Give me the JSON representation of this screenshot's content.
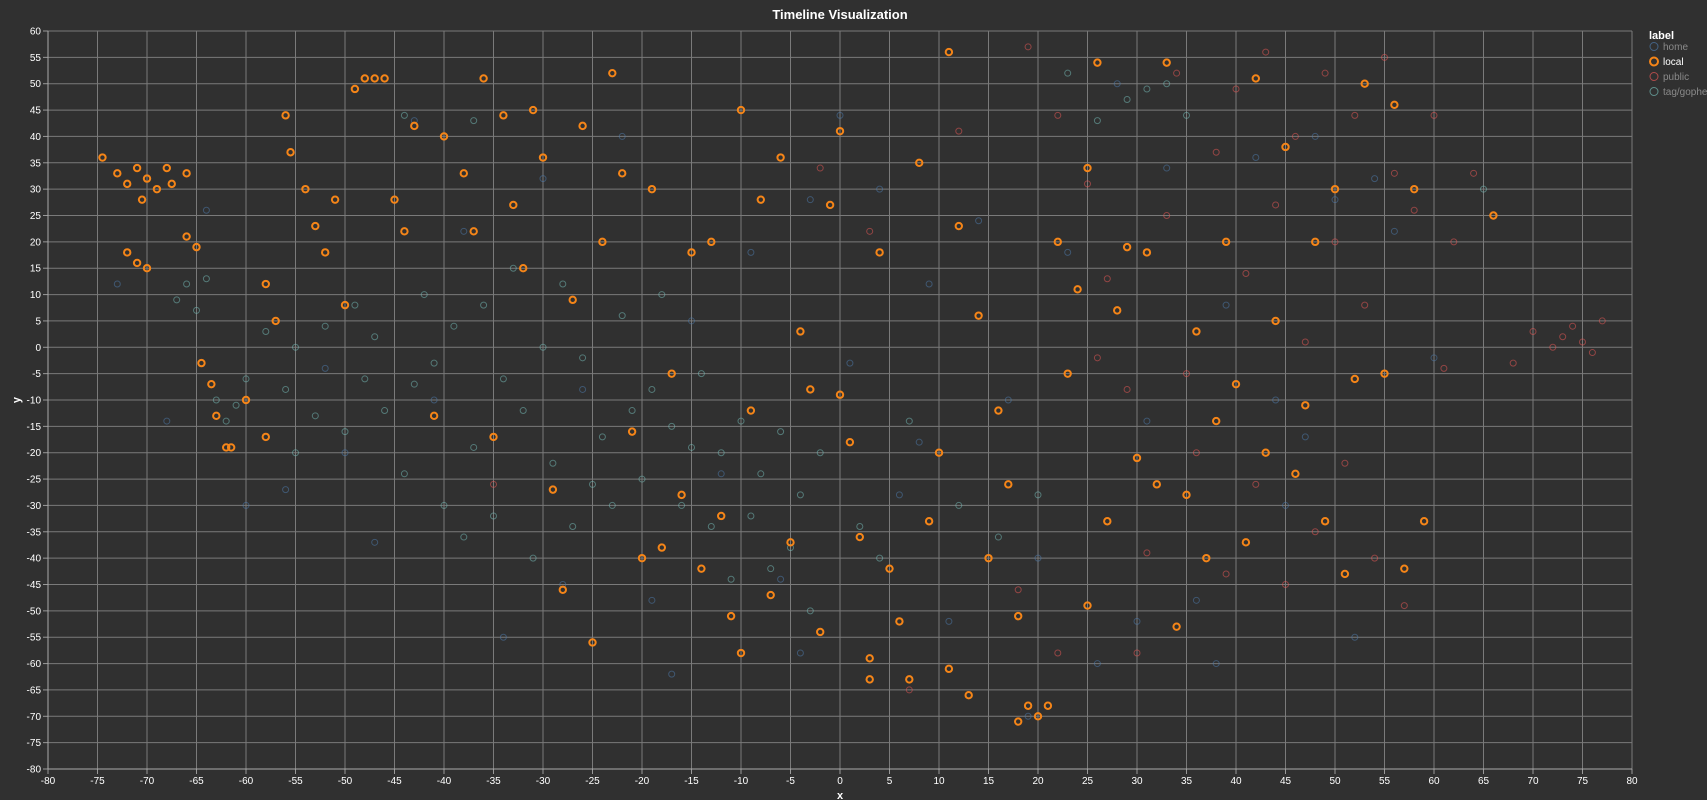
{
  "chart_data": {
    "type": "scatter",
    "title": "Timeline Visualization",
    "xlabel": "x",
    "ylabel": "y",
    "xlim": [
      -80,
      80
    ],
    "ylim": [
      -80,
      60
    ],
    "x_tick_step": 5,
    "y_tick_step": 5,
    "grid": true,
    "point_shape": "open-circle",
    "legend": {
      "title": "label",
      "placement": "top-right",
      "entries": [
        "home",
        "local",
        "public",
        "tag/gopher"
      ]
    },
    "colors": {
      "home": "#4c78a8",
      "local": "#f58518",
      "public": "#e45756",
      "tag/gopher": "#72b7b2"
    },
    "series": [
      {
        "name": "home",
        "points": [
          [
            -73,
            12
          ],
          [
            -68,
            -14
          ],
          [
            -60,
            -30
          ],
          [
            -52,
            -4
          ],
          [
            -47,
            -37
          ],
          [
            -43,
            43
          ],
          [
            -38,
            22
          ],
          [
            -34,
            -55
          ],
          [
            -30,
            32
          ],
          [
            -26,
            -8
          ],
          [
            -22,
            40
          ],
          [
            -19,
            -48
          ],
          [
            -15,
            5
          ],
          [
            -12,
            -24
          ],
          [
            -9,
            18
          ],
          [
            -6,
            -44
          ],
          [
            -3,
            28
          ],
          [
            0,
            44
          ],
          [
            1,
            -3
          ],
          [
            4,
            30
          ],
          [
            6,
            -28
          ],
          [
            9,
            12
          ],
          [
            11,
            -52
          ],
          [
            14,
            24
          ],
          [
            17,
            -10
          ],
          [
            20,
            -40
          ],
          [
            23,
            18
          ],
          [
            26,
            -60
          ],
          [
            28,
            50
          ],
          [
            31,
            -14
          ],
          [
            33,
            34
          ],
          [
            36,
            -48
          ],
          [
            39,
            8
          ],
          [
            42,
            36
          ],
          [
            45,
            -30
          ],
          [
            47,
            -17
          ],
          [
            50,
            28
          ],
          [
            52,
            -55
          ],
          [
            54,
            32
          ],
          [
            56,
            22
          ],
          [
            60,
            -2
          ],
          [
            48,
            40
          ],
          [
            -56,
            -27
          ],
          [
            -41,
            -10
          ],
          [
            -28,
            -45
          ],
          [
            -17,
            -62
          ],
          [
            -4,
            -58
          ],
          [
            8,
            -18
          ],
          [
            19,
            -70
          ],
          [
            30,
            -52
          ],
          [
            38,
            -60
          ],
          [
            44,
            -10
          ],
          [
            -64,
            26
          ],
          [
            -50,
            -20
          ]
        ]
      },
      {
        "name": "local",
        "points": [
          [
            -74.5,
            36
          ],
          [
            -73,
            33
          ],
          [
            -72,
            31
          ],
          [
            -71,
            34
          ],
          [
            -70,
            32
          ],
          [
            -70.5,
            28
          ],
          [
            -69,
            30
          ],
          [
            -68,
            34
          ],
          [
            -67.5,
            31
          ],
          [
            -66,
            33
          ],
          [
            -72,
            18
          ],
          [
            -71,
            16
          ],
          [
            -70,
            15
          ],
          [
            -66,
            21
          ],
          [
            -65,
            19
          ],
          [
            -64.5,
            -3
          ],
          [
            -63.5,
            -7
          ],
          [
            -63,
            -13
          ],
          [
            -61.5,
            -19
          ],
          [
            -62,
            -19
          ],
          [
            -60,
            -10
          ],
          [
            -58,
            -17
          ],
          [
            -58,
            12
          ],
          [
            -57,
            5
          ],
          [
            -56,
            44
          ],
          [
            -55.5,
            37
          ],
          [
            -54,
            30
          ],
          [
            -53,
            23
          ],
          [
            -52,
            18
          ],
          [
            -51,
            28
          ],
          [
            -50,
            8
          ],
          [
            -49,
            49
          ],
          [
            -48,
            51
          ],
          [
            -47,
            51
          ],
          [
            -46,
            51
          ],
          [
            -45,
            28
          ],
          [
            -44,
            22
          ],
          [
            -43,
            42
          ],
          [
            -41,
            -13
          ],
          [
            -40,
            40
          ],
          [
            -38,
            33
          ],
          [
            -37,
            22
          ],
          [
            -36,
            51
          ],
          [
            -35,
            -17
          ],
          [
            -34,
            44
          ],
          [
            -33,
            27
          ],
          [
            -32,
            15
          ],
          [
            -31,
            45
          ],
          [
            -30,
            36
          ],
          [
            -29,
            -27
          ],
          [
            -28,
            -46
          ],
          [
            -27,
            9
          ],
          [
            -26,
            42
          ],
          [
            -25,
            -56
          ],
          [
            -24,
            20
          ],
          [
            -23,
            52
          ],
          [
            -22,
            33
          ],
          [
            -21,
            -16
          ],
          [
            -20,
            -40
          ],
          [
            -19,
            30
          ],
          [
            -18,
            -38
          ],
          [
            -17,
            -5
          ],
          [
            -16,
            -28
          ],
          [
            -15,
            18
          ],
          [
            -14,
            -42
          ],
          [
            -13,
            20
          ],
          [
            -12,
            -32
          ],
          [
            -11,
            -51
          ],
          [
            -10,
            -58
          ],
          [
            -10,
            45
          ],
          [
            -9,
            -12
          ],
          [
            -8,
            28
          ],
          [
            -7,
            -47
          ],
          [
            -6,
            36
          ],
          [
            -5,
            -37
          ],
          [
            -4,
            3
          ],
          [
            -3,
            -8
          ],
          [
            -2,
            -54
          ],
          [
            -1,
            27
          ],
          [
            0,
            41
          ],
          [
            0,
            -9
          ],
          [
            1,
            -18
          ],
          [
            2,
            -36
          ],
          [
            3,
            -59
          ],
          [
            3,
            -63
          ],
          [
            4,
            18
          ],
          [
            5,
            -42
          ],
          [
            6,
            -52
          ],
          [
            7,
            -63
          ],
          [
            8,
            35
          ],
          [
            9,
            -33
          ],
          [
            10,
            -20
          ],
          [
            11,
            56
          ],
          [
            11,
            -61
          ],
          [
            12,
            23
          ],
          [
            13,
            -66
          ],
          [
            14,
            6
          ],
          [
            15,
            -40
          ],
          [
            16,
            -12
          ],
          [
            17,
            -26
          ],
          [
            18,
            -51
          ],
          [
            18,
            -71
          ],
          [
            19,
            -68
          ],
          [
            20,
            -70
          ],
          [
            21,
            -68
          ],
          [
            22,
            20
          ],
          [
            23,
            -5
          ],
          [
            24,
            11
          ],
          [
            25,
            34
          ],
          [
            25,
            -49
          ],
          [
            26,
            54
          ],
          [
            27,
            -33
          ],
          [
            28,
            7
          ],
          [
            29,
            19
          ],
          [
            30,
            -21
          ],
          [
            31,
            18
          ],
          [
            32,
            -26
          ],
          [
            33,
            54
          ],
          [
            34,
            -53
          ],
          [
            35,
            -28
          ],
          [
            36,
            3
          ],
          [
            37,
            -40
          ],
          [
            38,
            -14
          ],
          [
            39,
            20
          ],
          [
            40,
            -7
          ],
          [
            41,
            -37
          ],
          [
            42,
            51
          ],
          [
            43,
            -20
          ],
          [
            44,
            5
          ],
          [
            45,
            38
          ],
          [
            46,
            -24
          ],
          [
            47,
            -11
          ],
          [
            48,
            20
          ],
          [
            49,
            -33
          ],
          [
            50,
            30
          ],
          [
            51,
            -43
          ],
          [
            52,
            -6
          ],
          [
            53,
            50
          ],
          [
            55,
            -5
          ],
          [
            56,
            46
          ],
          [
            57,
            -42
          ],
          [
            58,
            30
          ],
          [
            59,
            -33
          ],
          [
            66,
            25
          ]
        ]
      },
      {
        "name": "public",
        "points": [
          [
            19,
            57
          ],
          [
            22,
            44
          ],
          [
            25,
            31
          ],
          [
            27,
            13
          ],
          [
            29,
            -8
          ],
          [
            31,
            -39
          ],
          [
            33,
            25
          ],
          [
            34,
            52
          ],
          [
            36,
            -20
          ],
          [
            38,
            37
          ],
          [
            39,
            -43
          ],
          [
            40,
            49
          ],
          [
            41,
            14
          ],
          [
            42,
            -26
          ],
          [
            43,
            56
          ],
          [
            44,
            27
          ],
          [
            45,
            -45
          ],
          [
            46,
            40
          ],
          [
            47,
            1
          ],
          [
            48,
            -35
          ],
          [
            49,
            52
          ],
          [
            50,
            20
          ],
          [
            51,
            -22
          ],
          [
            52,
            44
          ],
          [
            53,
            8
          ],
          [
            54,
            -40
          ],
          [
            55,
            55
          ],
          [
            56,
            33
          ],
          [
            57,
            -49
          ],
          [
            58,
            26
          ],
          [
            60,
            44
          ],
          [
            61,
            -4
          ],
          [
            62,
            20
          ],
          [
            64,
            33
          ],
          [
            68,
            -3
          ],
          [
            70,
            3
          ],
          [
            72,
            0
          ],
          [
            73,
            2
          ],
          [
            74,
            4
          ],
          [
            75,
            1
          ],
          [
            76,
            -1
          ],
          [
            77,
            5
          ],
          [
            18,
            -46
          ],
          [
            22,
            -58
          ],
          [
            26,
            -2
          ],
          [
            30,
            -58
          ],
          [
            35,
            -5
          ],
          [
            12,
            41
          ],
          [
            7,
            -65
          ],
          [
            3,
            22
          ],
          [
            -2,
            34
          ],
          [
            -35,
            -26
          ]
        ]
      },
      {
        "name": "tag/gopher",
        "points": [
          [
            -67,
            9
          ],
          [
            -66,
            12
          ],
          [
            -65,
            7
          ],
          [
            -64,
            13
          ],
          [
            -63,
            -10
          ],
          [
            -62,
            -14
          ],
          [
            -60,
            -6
          ],
          [
            -58,
            3
          ],
          [
            -56,
            -8
          ],
          [
            -55,
            0
          ],
          [
            -53,
            -13
          ],
          [
            -52,
            4
          ],
          [
            -50,
            -16
          ],
          [
            -49,
            8
          ],
          [
            -48,
            -6
          ],
          [
            -47,
            2
          ],
          [
            -46,
            -12
          ],
          [
            -44,
            -24
          ],
          [
            -43,
            -7
          ],
          [
            -42,
            10
          ],
          [
            -41,
            -3
          ],
          [
            -40,
            -30
          ],
          [
            -39,
            4
          ],
          [
            -38,
            -36
          ],
          [
            -37,
            -19
          ],
          [
            -36,
            8
          ],
          [
            -35,
            -32
          ],
          [
            -34,
            -6
          ],
          [
            -33,
            15
          ],
          [
            -32,
            -12
          ],
          [
            -31,
            -40
          ],
          [
            -30,
            0
          ],
          [
            -29,
            -22
          ],
          [
            -28,
            12
          ],
          [
            -27,
            -34
          ],
          [
            -26,
            -2
          ],
          [
            -25,
            -26
          ],
          [
            -24,
            -17
          ],
          [
            -23,
            -30
          ],
          [
            -22,
            6
          ],
          [
            -21,
            -12
          ],
          [
            -20,
            -25
          ],
          [
            -19,
            -8
          ],
          [
            -18,
            10
          ],
          [
            -17,
            -15
          ],
          [
            -16,
            -30
          ],
          [
            -15,
            -19
          ],
          [
            -14,
            -5
          ],
          [
            -13,
            -34
          ],
          [
            -12,
            -20
          ],
          [
            -11,
            -44
          ],
          [
            -10,
            -14
          ],
          [
            -9,
            -32
          ],
          [
            -8,
            -24
          ],
          [
            -7,
            -42
          ],
          [
            -6,
            -16
          ],
          [
            -5,
            -38
          ],
          [
            -4,
            -28
          ],
          [
            -3,
            -50
          ],
          [
            -2,
            -20
          ],
          [
            2,
            -34
          ],
          [
            4,
            -40
          ],
          [
            7,
            -14
          ],
          [
            12,
            -30
          ],
          [
            16,
            -36
          ],
          [
            20,
            -28
          ],
          [
            23,
            52
          ],
          [
            26,
            43
          ],
          [
            29,
            47
          ],
          [
            31,
            49
          ],
          [
            33,
            50
          ],
          [
            35,
            44
          ],
          [
            -44,
            44
          ],
          [
            -37,
            43
          ],
          [
            65,
            30
          ],
          [
            -61,
            -11
          ],
          [
            -55,
            -20
          ]
        ]
      }
    ]
  }
}
